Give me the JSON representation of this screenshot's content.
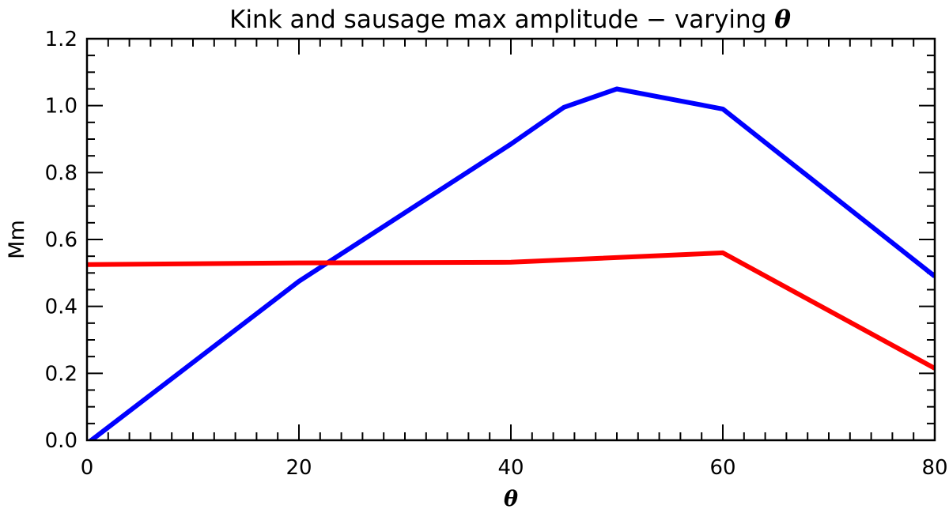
{
  "chart_data": {
    "type": "line",
    "title_text": "Kink and sausage max amplitude − varying ",
    "title_symbol": "θ",
    "xlabel": "θ",
    "ylabel": "Mm",
    "xlim": [
      0,
      80
    ],
    "ylim": [
      0,
      1.2
    ],
    "x_ticks": [
      0,
      20,
      40,
      60,
      80
    ],
    "x_tick_labels": [
      "0",
      "20",
      "40",
      "60",
      "80"
    ],
    "y_ticks": [
      0.0,
      0.2,
      0.4,
      0.6,
      0.8,
      1.0,
      1.2
    ],
    "y_tick_labels": [
      "0.0",
      "0.2",
      "0.4",
      "0.6",
      "0.8",
      "1.0",
      "1.2"
    ],
    "x_minor_step": 2,
    "y_minor_step": 0.05,
    "grid": false,
    "series": [
      {
        "color": "#0000ff",
        "x": [
          0,
          20,
          40,
          45,
          50,
          60,
          80
        ],
        "y": [
          -0.01,
          0.475,
          0.885,
          0.995,
          1.05,
          0.99,
          0.49
        ]
      },
      {
        "color": "#ff0000",
        "x": [
          0,
          20,
          40,
          60,
          80
        ],
        "y": [
          0.525,
          0.53,
          0.532,
          0.56,
          0.215
        ]
      }
    ]
  }
}
